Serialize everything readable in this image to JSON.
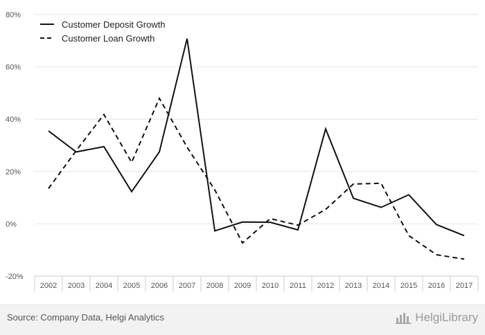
{
  "chart_data": {
    "type": "line",
    "title": "",
    "xlabel": "",
    "ylabel": "",
    "categories": [
      "2002",
      "2003",
      "2004",
      "2005",
      "2006",
      "2007",
      "2008",
      "2009",
      "2010",
      "2011",
      "2012",
      "2013",
      "2014",
      "2015",
      "2016",
      "2017"
    ],
    "series": [
      {
        "name": "Customer Deposit Growth",
        "dash": "solid",
        "values": [
          35.5,
          27.5,
          29.5,
          12.3,
          27.5,
          70.8,
          -2.7,
          0.7,
          0.6,
          -2.3,
          36.3,
          9.8,
          6.3,
          11.1,
          -0.3,
          -4.5
        ]
      },
      {
        "name": "Customer Loan Growth",
        "dash": "dashed",
        "values": [
          13.5,
          28.0,
          41.8,
          23.5,
          48.0,
          29.3,
          13.0,
          -7.3,
          2.0,
          -0.5,
          5.5,
          15.2,
          15.5,
          -4.5,
          -11.8,
          -13.5
        ]
      }
    ],
    "ylim": [
      -20,
      80
    ],
    "yticks": [
      -20,
      0,
      20,
      40,
      60,
      80
    ],
    "ytick_labels": [
      "-20%",
      "0%",
      "20%",
      "40%",
      "60%",
      "80%"
    ],
    "grid": true,
    "legend_position": "top-left"
  },
  "footer": {
    "source": "Source: Company Data, Helgi Analytics",
    "brand": "HelgiLibrary"
  },
  "colors": {
    "line": "#111111",
    "grid": "#e6e6e6",
    "axis": "#cccccc"
  }
}
